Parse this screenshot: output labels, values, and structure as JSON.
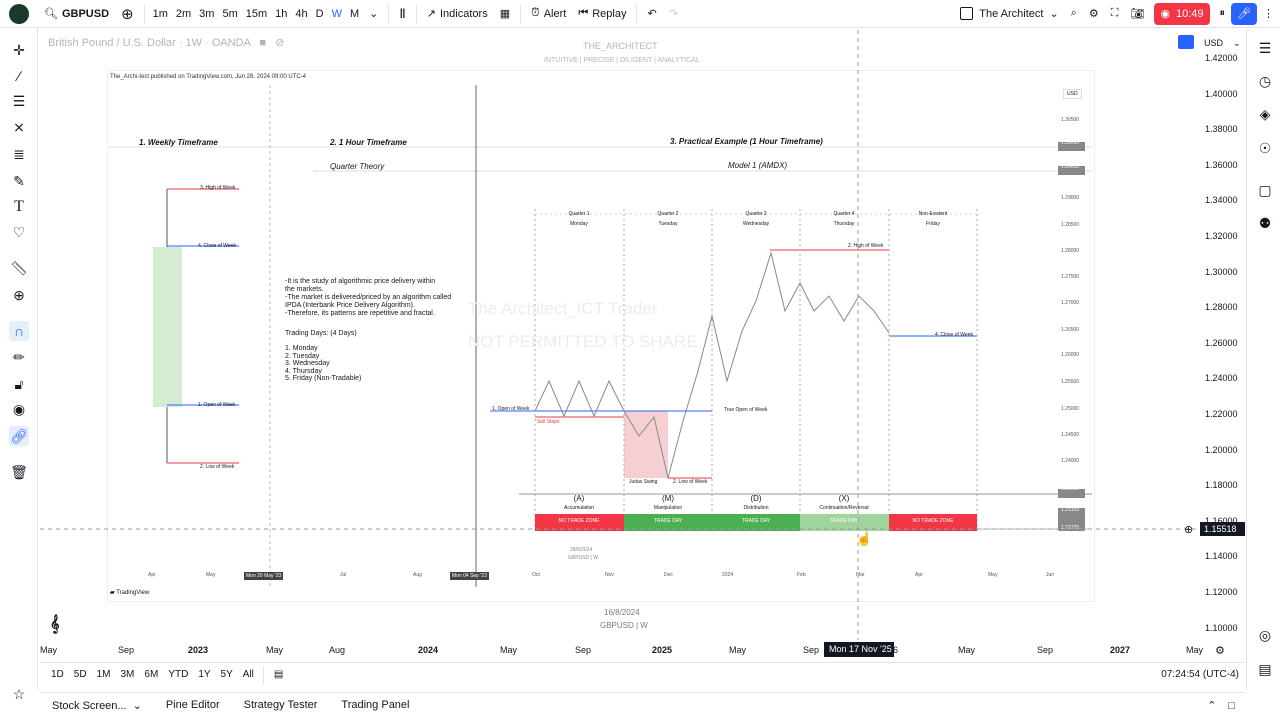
{
  "topbar": {
    "symbol": "GBPUSD",
    "intervals": [
      "1m",
      "2m",
      "3m",
      "5m",
      "15m",
      "1h",
      "4h",
      "D",
      "W",
      "M"
    ],
    "active_interval": "W",
    "indicators": "Indicators",
    "alert": "Alert",
    "replay": "Replay",
    "layout_name": "The Architect",
    "record_time": "10:49"
  },
  "legend": {
    "title": "British Pound / U.S. Dollar · 1W · OANDA",
    "watermark_title": "THE_ARCHITECT",
    "watermark_sub": "INTUITIVE | PRECISE | DILIGENT | ANALYTICAL",
    "currency": "USD"
  },
  "price_axis": [
    "1.42000",
    "1.40000",
    "1.38000",
    "1.36000",
    "1.34000",
    "1.32000",
    "1.30000",
    "1.28000",
    "1.26000",
    "1.24000",
    "1.22000",
    "1.20000",
    "1.18000",
    "1.16000",
    "1.14000",
    "1.12000",
    "1.10000"
  ],
  "current_price": "1.15518",
  "time_axis": [
    "May",
    "Sep",
    "2023",
    "May",
    "Aug",
    "2024",
    "May",
    "Sep",
    "2025",
    "May",
    "Sep",
    "6",
    "May",
    "Sep",
    "2027",
    "May"
  ],
  "crosshair_time": "Mon 17 Nov '25",
  "ranges": [
    "1D",
    "5D",
    "1M",
    "3M",
    "6M",
    "YTD",
    "1Y",
    "5Y",
    "All"
  ],
  "clock": "07:24:54 (UTC-4)",
  "bottom_tabs": [
    "Stock Screen...",
    "Pine Editor",
    "Strategy Tester",
    "Trading Panel"
  ],
  "footer": {
    "date": "16/8/2024",
    "symbol": "GBPUSD | W"
  },
  "image": {
    "published": "The_Archi-tect published on TradingView.com, Jun 28, 2024 09:00 UTC-4",
    "h1": "1. Weekly Timeframe",
    "h2": "2. 1 Hour Timeframe",
    "h3": "3. Practical Example (1 Hour Timeframe)",
    "qt": "Quarter Theory",
    "model": "Model 1 (AMDX)",
    "desc": [
      "-It is the study of algorithmic price delivery within",
      "the markets.",
      "-The market is delivered/priced by an algorithm called",
      "IPDA (Interbank Price Delivery Algorithm).",
      "-Therefore, its patterns are repetitive and fractal."
    ],
    "td_title": "Trading Days: (4 Days)",
    "td": [
      "1. Monday",
      "2. Tuesday",
      "3. Wednesday",
      "4. Thursday",
      "5. Friday (Non-Tradable)"
    ],
    "wk": [
      "3. High of Week",
      "4. Close of Week",
      "1. Open of Week",
      "2. Low of Week"
    ],
    "quarters": [
      [
        "Quarter 1",
        "Monday"
      ],
      [
        "Quarter 2",
        "Tuesday"
      ],
      [
        "Quarter 3",
        "Wednesday"
      ],
      [
        "Quarter 4",
        "Thursday"
      ],
      [
        "Non-Existent",
        "Friday"
      ]
    ],
    "phases": [
      [
        "(A)",
        "Accumulation"
      ],
      [
        "(M)",
        "Manipulation"
      ],
      [
        "(D)",
        "Distribution"
      ],
      [
        "(X)",
        "Continuation/Reversal"
      ]
    ],
    "days": [
      "NO TRADE ZONE",
      "TRADE DAY",
      "TRADE DAY",
      "TRADE DAY",
      "NO TRADE ZONE"
    ],
    "labels": {
      "hw": "2. High of Week",
      "cw": "4. Close of Week",
      "ow": "1. Open of Week",
      "sell": "Sell Stops",
      "trueopen": "True Open of Week",
      "judas": "Judas Swing",
      "lw": "2. Low of Week"
    },
    "wm1": "The Architect_ICT Trader",
    "wm2": "NOT PERMITTED TO SHARE",
    "inner_time": [
      "Apr",
      "May",
      "Mon 29 May '23",
      "Jul",
      "Aug",
      "Mon 04 Sep '23",
      "Oct",
      "Nov",
      "Dec",
      "2024",
      "Feb",
      "Mar",
      "Apr",
      "May",
      "Jun"
    ],
    "inner_prices": [
      "1.30500",
      "1.30093",
      "1.29615",
      "1.29000",
      "1.28500",
      "1.28000",
      "1.27500",
      "1.27000",
      "1.26500",
      "1.26000",
      "1.25500",
      "1.25000",
      "1.24500",
      "1.24000",
      "1.23502",
      "1.23103",
      "1.22775"
    ],
    "inner_currency": "USD",
    "inner_date": "28/6/2024",
    "inner_sym": "GBPUSD | W",
    "tv_logo": "TradingView"
  }
}
